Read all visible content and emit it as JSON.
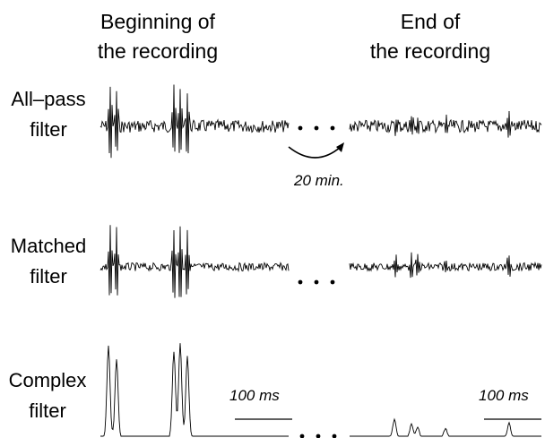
{
  "column_headers": [
    {
      "line1": "Beginning of",
      "line2": "the recording"
    },
    {
      "line1": "End of",
      "line2": "the recording"
    }
  ],
  "row_labels": [
    {
      "line1": "All–pass",
      "line2": "filter"
    },
    {
      "line1": "Matched",
      "line2": "filter"
    },
    {
      "line1": "Complex",
      "line2": "filter"
    }
  ],
  "gap_label": "20 min.",
  "scale_bar_labels": [
    "100 ms",
    "100 ms"
  ],
  "ellipsis": "• • •",
  "colors": {
    "trace": "#000000",
    "background": "#ffffff"
  }
}
